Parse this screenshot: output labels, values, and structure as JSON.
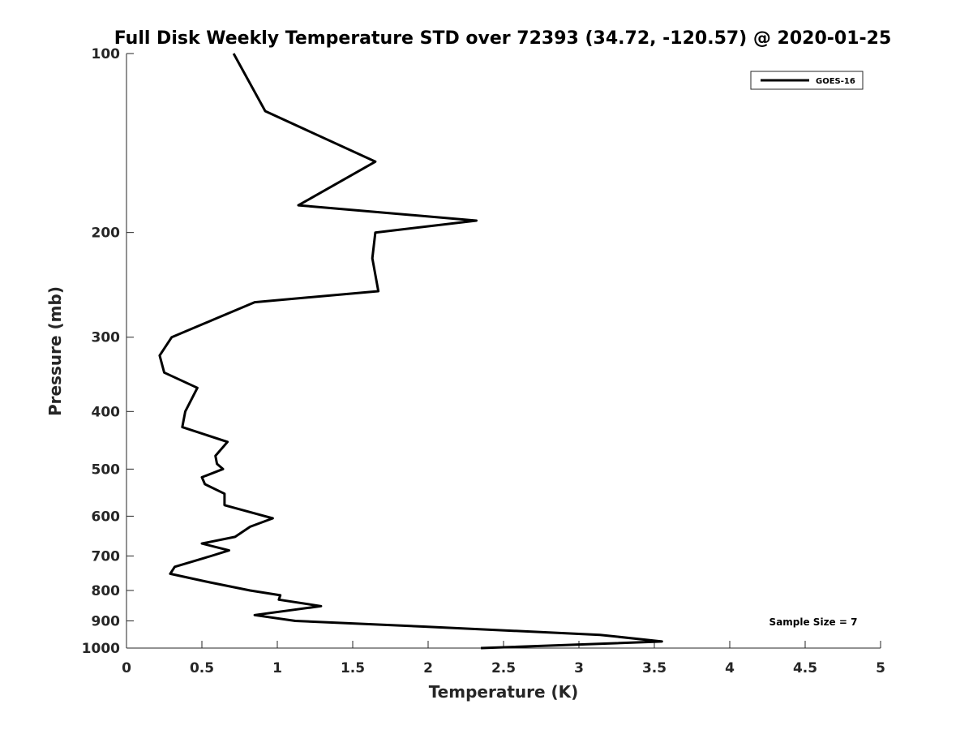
{
  "chart_data": {
    "type": "line",
    "title": "Full Disk Weekly Temperature STD over 72393 (34.72, -120.57) @ 2020-01-25",
    "xlabel": "Temperature (K)",
    "ylabel": "Pressure (mb)",
    "xlim": [
      0,
      5
    ],
    "ylim": [
      100,
      1000
    ],
    "y_scale": "log",
    "y_reversed": true,
    "grid": false,
    "legend_position": "top-right",
    "x_ticks": [
      "0",
      "0.5",
      "1",
      "1.5",
      "2",
      "2.5",
      "3",
      "3.5",
      "4",
      "4.5",
      "5"
    ],
    "y_ticks": [
      "100",
      "200",
      "300",
      "400",
      "500",
      "600",
      "700",
      "800",
      "900",
      "1000"
    ],
    "series": [
      {
        "name": "GOES-16",
        "color": "#000000",
        "points": [
          [
            0.71,
            100
          ],
          [
            0.92,
            125
          ],
          [
            1.65,
            152
          ],
          [
            1.14,
            180
          ],
          [
            2.32,
            191
          ],
          [
            1.65,
            200
          ],
          [
            1.63,
            221
          ],
          [
            1.67,
            251
          ],
          [
            0.85,
            262
          ],
          [
            0.58,
            280
          ],
          [
            0.3,
            300
          ],
          [
            0.22,
            322
          ],
          [
            0.25,
            344
          ],
          [
            0.47,
            365
          ],
          [
            0.39,
            400
          ],
          [
            0.37,
            425
          ],
          [
            0.67,
            450
          ],
          [
            0.59,
            475
          ],
          [
            0.6,
            490
          ],
          [
            0.64,
            500
          ],
          [
            0.5,
            516
          ],
          [
            0.52,
            530
          ],
          [
            0.65,
            550
          ],
          [
            0.65,
            575
          ],
          [
            0.97,
            605
          ],
          [
            0.82,
            625
          ],
          [
            0.72,
            650
          ],
          [
            0.5,
            667
          ],
          [
            0.68,
            685
          ],
          [
            0.56,
            700
          ],
          [
            0.32,
            730
          ],
          [
            0.29,
            750
          ],
          [
            0.55,
            775
          ],
          [
            0.82,
            800
          ],
          [
            1.02,
            815
          ],
          [
            1.01,
            829
          ],
          [
            1.29,
            850
          ],
          [
            0.85,
            880
          ],
          [
            1.12,
            900
          ],
          [
            1.97,
            920
          ],
          [
            3.14,
            950
          ],
          [
            3.55,
            975
          ],
          [
            2.35,
            1000
          ]
        ]
      }
    ],
    "annotations": [
      "Sample Size = 7"
    ]
  }
}
